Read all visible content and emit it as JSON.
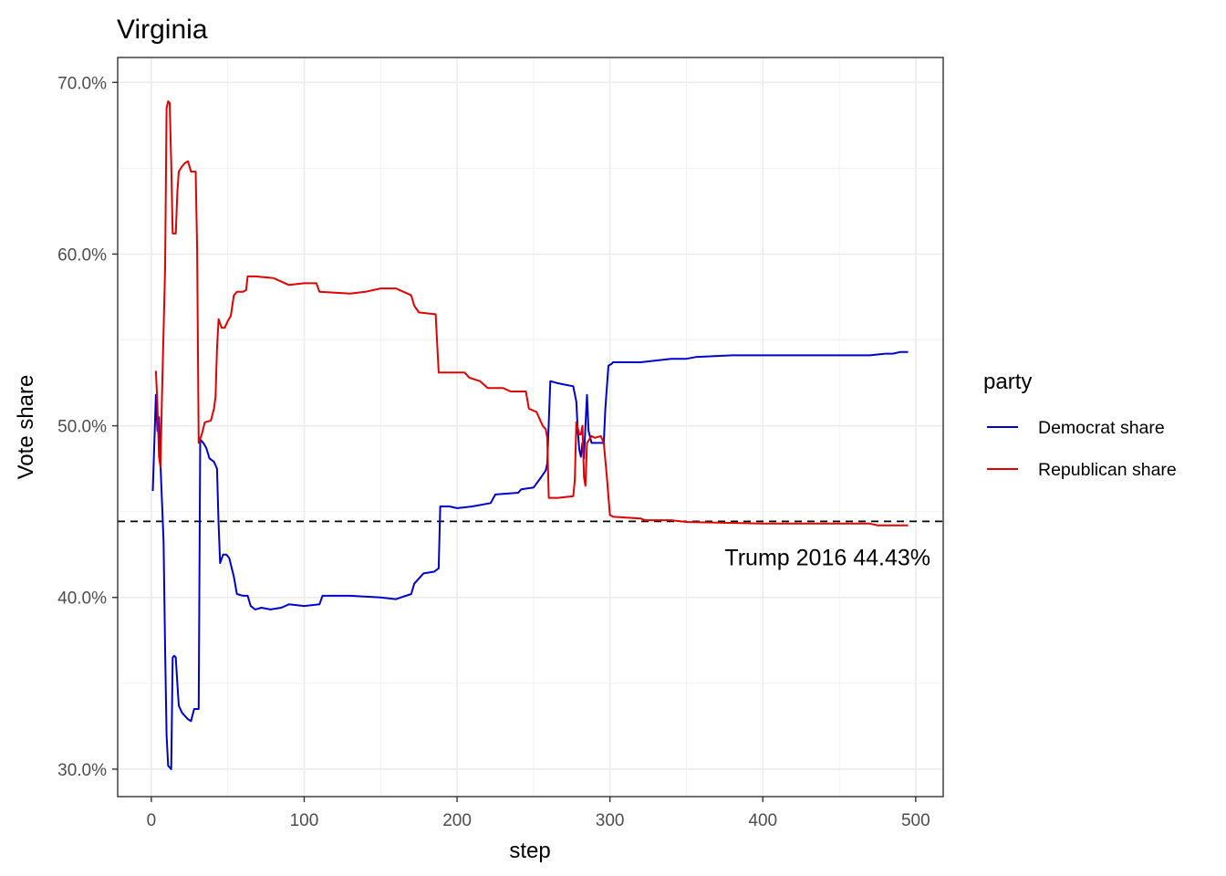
{
  "chart_data": {
    "type": "line",
    "title": "Virginia",
    "xlabel": "step",
    "ylabel": "Vote share",
    "xlim": [
      -22,
      518
    ],
    "ylim": [
      0.284,
      0.7145
    ],
    "x_ticks": [
      0,
      100,
      200,
      300,
      400,
      500
    ],
    "x_tick_labels": [
      "0",
      "100",
      "200",
      "300",
      "400",
      "500"
    ],
    "y_ticks": [
      0.3,
      0.4,
      0.5,
      0.6,
      0.7
    ],
    "y_tick_labels": [
      "30.0%",
      "40.0%",
      "50.0%",
      "60.0%",
      "70.0%"
    ],
    "grid": true,
    "legend": {
      "title": "party",
      "position": "right"
    },
    "reference_line": {
      "y": 0.4443,
      "style": "dashed",
      "label": "Trump 2016 44.43%"
    },
    "series": [
      {
        "name": "Democrat share",
        "color": "#0000cd",
        "points": [
          [
            1,
            0.462
          ],
          [
            3,
            0.518
          ],
          [
            4,
            0.497
          ],
          [
            5,
            0.505
          ],
          [
            6,
            0.478
          ],
          [
            8,
            0.433
          ],
          [
            9,
            0.37
          ],
          [
            10,
            0.32
          ],
          [
            11,
            0.302
          ],
          [
            12,
            0.301
          ],
          [
            13,
            0.3
          ],
          [
            14,
            0.365
          ],
          [
            15,
            0.366
          ],
          [
            16,
            0.365
          ],
          [
            17,
            0.35
          ],
          [
            18,
            0.337
          ],
          [
            20,
            0.333
          ],
          [
            22,
            0.331
          ],
          [
            24,
            0.329
          ],
          [
            26,
            0.328
          ],
          [
            28,
            0.335
          ],
          [
            31,
            0.335
          ],
          [
            32,
            0.492
          ],
          [
            34,
            0.49
          ],
          [
            36,
            0.487
          ],
          [
            38,
            0.481
          ],
          [
            41,
            0.479
          ],
          [
            43,
            0.475
          ],
          [
            44,
            0.443
          ],
          [
            45,
            0.42
          ],
          [
            47,
            0.425
          ],
          [
            49,
            0.425
          ],
          [
            51,
            0.423
          ],
          [
            54,
            0.412
          ],
          [
            56,
            0.402
          ],
          [
            60,
            0.401
          ],
          [
            63,
            0.401
          ],
          [
            65,
            0.395
          ],
          [
            68,
            0.393
          ],
          [
            72,
            0.394
          ],
          [
            78,
            0.393
          ],
          [
            85,
            0.394
          ],
          [
            90,
            0.396
          ],
          [
            100,
            0.395
          ],
          [
            110,
            0.396
          ],
          [
            112,
            0.401
          ],
          [
            130,
            0.401
          ],
          [
            150,
            0.4
          ],
          [
            160,
            0.399
          ],
          [
            170,
            0.402
          ],
          [
            172,
            0.408
          ],
          [
            178,
            0.414
          ],
          [
            185,
            0.415
          ],
          [
            188,
            0.417
          ],
          [
            189,
            0.453
          ],
          [
            195,
            0.453
          ],
          [
            200,
            0.452
          ],
          [
            210,
            0.453
          ],
          [
            222,
            0.455
          ],
          [
            225,
            0.46
          ],
          [
            240,
            0.461
          ],
          [
            242,
            0.463
          ],
          [
            250,
            0.464
          ],
          [
            255,
            0.47
          ],
          [
            258,
            0.474
          ],
          [
            259,
            0.478
          ],
          [
            261,
            0.526
          ],
          [
            265,
            0.525
          ],
          [
            270,
            0.524
          ],
          [
            276,
            0.523
          ],
          [
            278,
            0.514
          ],
          [
            279,
            0.496
          ],
          [
            280,
            0.486
          ],
          [
            281,
            0.482
          ],
          [
            282,
            0.49
          ],
          [
            283,
            0.481
          ],
          [
            284,
            0.5
          ],
          [
            285,
            0.518
          ],
          [
            286,
            0.497
          ],
          [
            288,
            0.49
          ],
          [
            296,
            0.49
          ],
          [
            297,
            0.51
          ],
          [
            299,
            0.535
          ],
          [
            301,
            0.536
          ],
          [
            302,
            0.537
          ],
          [
            320,
            0.537
          ],
          [
            340,
            0.539
          ],
          [
            350,
            0.539
          ],
          [
            356,
            0.54
          ],
          [
            380,
            0.541
          ],
          [
            420,
            0.541
          ],
          [
            460,
            0.541
          ],
          [
            470,
            0.541
          ],
          [
            480,
            0.542
          ],
          [
            485,
            0.542
          ],
          [
            490,
            0.543
          ],
          [
            495,
            0.543
          ]
        ]
      },
      {
        "name": "Republican share",
        "color": "#e00000",
        "points": [
          [
            3,
            0.532
          ],
          [
            4,
            0.512
          ],
          [
            5,
            0.482
          ],
          [
            6,
            0.476
          ],
          [
            7,
            0.518
          ],
          [
            9,
            0.592
          ],
          [
            10,
            0.685
          ],
          [
            11,
            0.689
          ],
          [
            12,
            0.688
          ],
          [
            13,
            0.653
          ],
          [
            14,
            0.612
          ],
          [
            16,
            0.612
          ],
          [
            17,
            0.636
          ],
          [
            18,
            0.648
          ],
          [
            20,
            0.651
          ],
          [
            22,
            0.653
          ],
          [
            24,
            0.654
          ],
          [
            26,
            0.648
          ],
          [
            29,
            0.648
          ],
          [
            30,
            0.603
          ],
          [
            31,
            0.49
          ],
          [
            33,
            0.495
          ],
          [
            35,
            0.502
          ],
          [
            39,
            0.503
          ],
          [
            41,
            0.51
          ],
          [
            42,
            0.517
          ],
          [
            43,
            0.545
          ],
          [
            44,
            0.562
          ],
          [
            46,
            0.557
          ],
          [
            48,
            0.557
          ],
          [
            50,
            0.561
          ],
          [
            52,
            0.564
          ],
          [
            54,
            0.576
          ],
          [
            56,
            0.578
          ],
          [
            60,
            0.578
          ],
          [
            62,
            0.579
          ],
          [
            63,
            0.587
          ],
          [
            68,
            0.587
          ],
          [
            80,
            0.586
          ],
          [
            90,
            0.582
          ],
          [
            100,
            0.583
          ],
          [
            108,
            0.583
          ],
          [
            110,
            0.578
          ],
          [
            130,
            0.577
          ],
          [
            140,
            0.578
          ],
          [
            150,
            0.58
          ],
          [
            160,
            0.58
          ],
          [
            170,
            0.576
          ],
          [
            172,
            0.57
          ],
          [
            175,
            0.566
          ],
          [
            185,
            0.565
          ],
          [
            186,
            0.565
          ],
          [
            188,
            0.531
          ],
          [
            205,
            0.531
          ],
          [
            208,
            0.528
          ],
          [
            215,
            0.526
          ],
          [
            220,
            0.522
          ],
          [
            230,
            0.522
          ],
          [
            235,
            0.52
          ],
          [
            245,
            0.52
          ],
          [
            247,
            0.51
          ],
          [
            252,
            0.508
          ],
          [
            256,
            0.5
          ],
          [
            258,
            0.498
          ],
          [
            259,
            0.493
          ],
          [
            260,
            0.458
          ],
          [
            266,
            0.458
          ],
          [
            276,
            0.459
          ],
          [
            277,
            0.468
          ],
          [
            278,
            0.502
          ],
          [
            280,
            0.495
          ],
          [
            281,
            0.495
          ],
          [
            282,
            0.5
          ],
          [
            283,
            0.47
          ],
          [
            284,
            0.465
          ],
          [
            285,
            0.49
          ],
          [
            288,
            0.494
          ],
          [
            290,
            0.493
          ],
          [
            294,
            0.494
          ],
          [
            296,
            0.49
          ],
          [
            298,
            0.47
          ],
          [
            300,
            0.448
          ],
          [
            302,
            0.447
          ],
          [
            320,
            0.446
          ],
          [
            323,
            0.445
          ],
          [
            340,
            0.445
          ],
          [
            350,
            0.444
          ],
          [
            400,
            0.443
          ],
          [
            420,
            0.443
          ],
          [
            450,
            0.443
          ],
          [
            460,
            0.443
          ],
          [
            470,
            0.443
          ],
          [
            475,
            0.442
          ],
          [
            495,
            0.442
          ]
        ]
      }
    ]
  }
}
